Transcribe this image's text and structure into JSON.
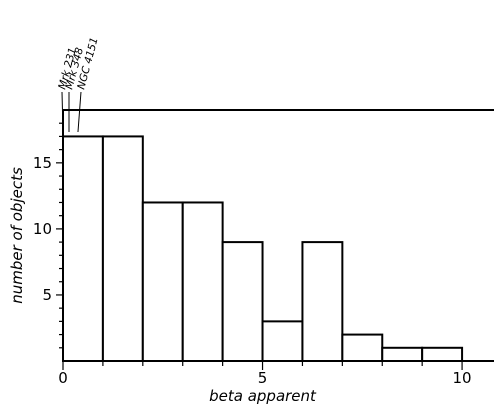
{
  "chart_data": {
    "type": "bar",
    "xlabel": "beta apparent",
    "ylabel": "number of objects",
    "xlim": [
      0,
      10.8
    ],
    "ylim": [
      0,
      19
    ],
    "bin_width": 1,
    "bins": [
      {
        "start": 0,
        "end": 1,
        "value": 17
      },
      {
        "start": 1,
        "end": 2,
        "value": 17
      },
      {
        "start": 2,
        "end": 3,
        "value": 12
      },
      {
        "start": 3,
        "end": 4,
        "value": 12
      },
      {
        "start": 4,
        "end": 5,
        "value": 9
      },
      {
        "start": 5,
        "end": 6,
        "value": 3
      },
      {
        "start": 6,
        "end": 7,
        "value": 9
      },
      {
        "start": 7,
        "end": 8,
        "value": 2
      },
      {
        "start": 8,
        "end": 9,
        "value": 1
      },
      {
        "start": 9,
        "end": 10,
        "value": 1
      }
    ],
    "x_ticks_major": [
      0,
      5,
      10
    ],
    "x_ticks_minor": [
      1,
      2,
      3,
      4,
      6,
      7,
      8,
      9
    ],
    "y_ticks_major": [
      5,
      10,
      15
    ],
    "y_ticks_minor": [
      1,
      2,
      3,
      4,
      6,
      7,
      8,
      9,
      11,
      12,
      13,
      14,
      16,
      17,
      18
    ],
    "annotations": [
      {
        "label": "Mrk 231",
        "x": 0.0
      },
      {
        "label": "Mrk 348",
        "x": 0.1
      },
      {
        "label": "NGC 4151",
        "x": 0.25
      }
    ]
  }
}
